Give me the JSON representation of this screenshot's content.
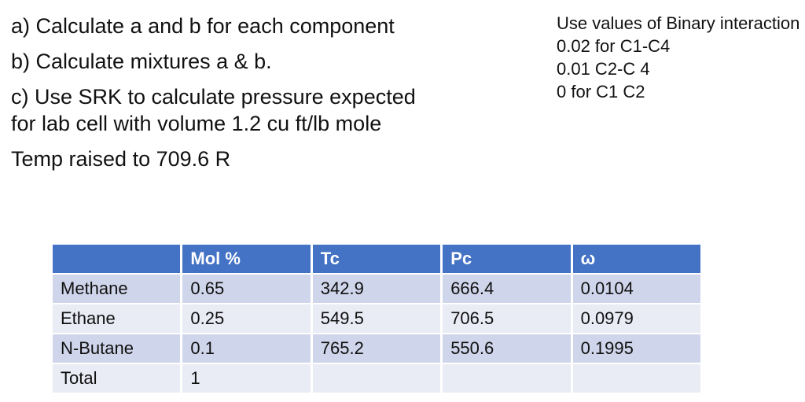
{
  "instructions": {
    "item_a": "a) Calculate a and b for each component",
    "item_b": "b) Calculate mixtures a & b.",
    "item_c_line1": "c) Use SRK to calculate pressure expected",
    "item_c_line2": "for lab cell with volume 1.2 cu ft/lb mole",
    "temp_note": "Temp raised to 709.6 R"
  },
  "binary_note": {
    "line1": "Use values of Binary interaction",
    "line2": "0.02 for C1-C4",
    "line3": "0.01 C2-C 4",
    "line4": "0 for C1 C2"
  },
  "table": {
    "headers": [
      "",
      "Mol %",
      "Tc",
      "Pc",
      "ω"
    ],
    "rows": [
      {
        "cells": [
          "Methane",
          "0.65",
          "342.9",
          "666.4",
          "0.0104"
        ]
      },
      {
        "cells": [
          "Ethane",
          "0.25",
          "549.5",
          "706.5",
          "0.0979"
        ]
      },
      {
        "cells": [
          "N-Butane",
          "0.1",
          "765.2",
          "550.6",
          "0.1995"
        ]
      },
      {
        "cells": [
          "Total",
          "1",
          "",
          "",
          ""
        ]
      }
    ]
  },
  "colors": {
    "table_header_fill": "#4472C4",
    "table_band_dark": "#CFD5EA",
    "table_band_light": "#E9EBF5",
    "table_header_text": "#FFFFFF",
    "body_text": "#111111"
  }
}
